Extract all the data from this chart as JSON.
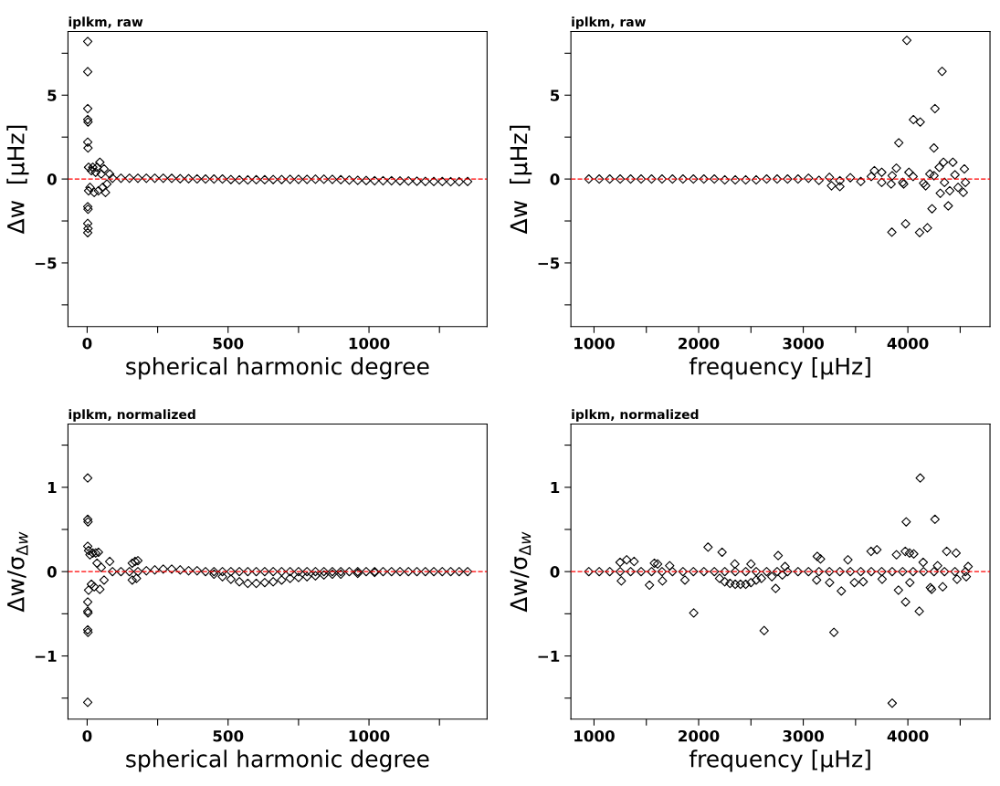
{
  "chart_data": [
    {
      "type": "scatter",
      "title": "iplkm, raw",
      "xlabel": "spherical harmonic degree",
      "ylabel": "Δw  [μHz]",
      "marker": "diamond",
      "grid": false,
      "xlim": [
        -68,
        1419
      ],
      "xticks": [
        0,
        {
          "value": 250,
          "label": null
        },
        500,
        {
          "value": 750,
          "label": null
        },
        1000,
        {
          "value": 1250,
          "label": null
        }
      ],
      "ylim": [
        -8.8,
        8.8
      ],
      "yticks": [
        {
          "value": -7.5,
          "label": null
        },
        {
          "value": -5,
          "label": "−5"
        },
        {
          "value": -2.5,
          "label": null
        },
        0,
        {
          "value": 2.5,
          "label": null
        },
        5,
        {
          "value": 7.5,
          "label": null
        }
      ],
      "ref_lines": [
        {
          "axis": "y",
          "value": 0,
          "color": "#ff0000",
          "line_style": "dashed"
        }
      ],
      "series": [
        {
          "color": "#000000",
          "x": [
            2,
            2,
            2,
            2,
            3,
            2,
            3,
            2,
            3,
            2,
            3,
            2,
            45,
            35,
            60,
            20,
            25,
            40,
            65,
            80,
            10,
            50,
            30,
            70,
            55,
            15,
            5,
            5,
            90,
            120,
            150,
            180,
            210,
            240,
            270,
            300,
            330,
            360,
            390,
            420,
            450,
            480,
            510,
            540,
            570,
            600,
            630,
            660,
            690,
            720,
            750,
            780,
            810,
            840,
            870,
            900,
            930,
            960,
            990,
            1020,
            1050,
            1080,
            1110,
            1140,
            1170,
            1200,
            1230,
            1260,
            1290,
            1320,
            1350
          ],
          "values": [
            8.2,
            6.4,
            4.2,
            3.55,
            3.4,
            2.2,
            1.85,
            -1.65,
            -1.8,
            -2.65,
            -2.95,
            -3.2,
            1.0,
            0.7,
            0.6,
            0.7,
            -0.8,
            -0.7,
            -0.8,
            0.3,
            -0.5,
            0.3,
            0.4,
            -0.3,
            -0.5,
            0.5,
            0.7,
            -0.7,
            0.05,
            0.05,
            0.05,
            0.05,
            0.05,
            0.05,
            0.05,
            0.04,
            0.02,
            0.02,
            0.01,
            0.0,
            0.0,
            0.0,
            -0.03,
            -0.05,
            -0.05,
            -0.04,
            -0.04,
            -0.03,
            -0.03,
            -0.02,
            -0.02,
            -0.02,
            -0.01,
            -0.01,
            -0.02,
            -0.04,
            -0.06,
            -0.08,
            -0.09,
            -0.1,
            -0.1,
            -0.1,
            -0.11,
            -0.12,
            -0.13,
            -0.14,
            -0.15,
            -0.15,
            -0.16,
            -0.16,
            -0.15
          ]
        }
      ]
    },
    {
      "type": "scatter",
      "title": "iplkm, raw",
      "xlabel": "frequency [μHz]",
      "ylabel": "Δw  [μHz]",
      "marker": "diamond",
      "grid": false,
      "xlim": [
        779,
        4785
      ],
      "xticks": [
        1000,
        {
          "value": 1500,
          "label": null
        },
        2000,
        {
          "value": 2500,
          "label": null
        },
        3000,
        {
          "value": 3500,
          "label": null
        },
        4000,
        {
          "value": 4500,
          "label": null
        }
      ],
      "ylim": [
        -8.8,
        8.8
      ],
      "yticks": [
        {
          "value": -7.5,
          "label": null
        },
        {
          "value": -5,
          "label": "−5"
        },
        {
          "value": -2.5,
          "label": null
        },
        0,
        {
          "value": 2.5,
          "label": null
        },
        5,
        {
          "value": 7.5,
          "label": null
        }
      ],
      "ref_lines": [
        {
          "axis": "y",
          "value": 0,
          "color": "#ff0000",
          "line_style": "dashed"
        }
      ],
      "series": [
        {
          "color": "#000000",
          "x": [
            3990,
            4327,
            4259,
            4053,
            4118,
            3913,
            4249,
            4231,
            4386,
            3847,
            3978,
            4112,
            4187,
            3680,
            3750,
            3890,
            4010,
            4340,
            4430,
            4300,
            4540,
            3270,
            3350,
            4310,
            4400,
            4530,
            4480,
            3840,
            3960,
            4170,
            4210,
            950,
            1050,
            1150,
            1250,
            1350,
            1450,
            1550,
            1650,
            1750,
            1850,
            1950,
            2050,
            2150,
            2250,
            2350,
            2450,
            2550,
            2650,
            2750,
            2850,
            2950,
            3050,
            3150,
            3250,
            3350,
            3450,
            3550,
            3650,
            3750,
            3850,
            3950,
            4050,
            4150,
            4250,
            4350,
            4450,
            4550
          ],
          "values": [
            8.27,
            6.42,
            4.2,
            3.54,
            3.4,
            2.16,
            1.85,
            -1.77,
            -1.6,
            -3.17,
            -2.67,
            -3.19,
            -2.91,
            0.5,
            0.4,
            0.65,
            0.4,
            1.0,
            1.0,
            0.7,
            0.6,
            -0.4,
            -0.45,
            -0.85,
            -0.7,
            -0.8,
            -0.5,
            -0.3,
            -0.3,
            -0.4,
            0.3,
            0,
            0,
            0,
            0,
            0,
            0,
            0,
            0,
            0,
            0,
            0,
            0,
            0,
            -0.05,
            -0.05,
            -0.05,
            -0.05,
            0,
            0,
            0,
            0,
            0.05,
            -0.08,
            0.1,
            -0.1,
            0.08,
            -0.15,
            0.15,
            -0.2,
            0.2,
            -0.2,
            0.15,
            -0.25,
            0.2,
            -0.2,
            0.25,
            -0.2
          ]
        }
      ]
    },
    {
      "type": "scatter",
      "title": "iplkm, normalized",
      "xlabel": "spherical harmonic degree",
      "ylabel": "Δw/σ$_{Δw}$",
      "marker": "diamond",
      "grid": false,
      "xlim": [
        -68,
        1419
      ],
      "xticks": [
        0,
        {
          "value": 250,
          "label": null
        },
        500,
        {
          "value": 750,
          "label": null
        },
        1000,
        {
          "value": 1250,
          "label": null
        }
      ],
      "ylim": [
        -1.75,
        1.75
      ],
      "yticks": [
        {
          "value": -1.5,
          "label": null
        },
        {
          "value": -1,
          "label": "−1"
        },
        {
          "value": -0.5,
          "label": null
        },
        0,
        {
          "value": 0.5,
          "label": null
        },
        1,
        {
          "value": 1.5,
          "label": null
        }
      ],
      "ref_lines": [
        {
          "axis": "y",
          "value": 0,
          "color": "#ff0000",
          "line_style": "dashed"
        }
      ],
      "series": [
        {
          "color": "#000000",
          "x": [
            2,
            2,
            3,
            2,
            2,
            2,
            3,
            2,
            3,
            2,
            5,
            10,
            20,
            30,
            40,
            25,
            45,
            80,
            15,
            35,
            60,
            50,
            160,
            170,
            180,
            160,
            175,
            5,
            90,
            120,
            150,
            180,
            210,
            240,
            270,
            300,
            330,
            360,
            390,
            420,
            450,
            480,
            510,
            540,
            570,
            600,
            630,
            660,
            690,
            720,
            750,
            780,
            810,
            840,
            870,
            900,
            930,
            960,
            990,
            1020,
            1050,
            1080,
            1110,
            1140,
            1170,
            1200,
            1230,
            1260,
            1290,
            1320,
            1350,
            450,
            480,
            510,
            540,
            570,
            600,
            630,
            660,
            690,
            720,
            750,
            780,
            810,
            840,
            870,
            900,
            960,
            1020
          ],
          "values": [
            1.11,
            0.62,
            0.59,
            0.3,
            -0.36,
            -0.47,
            -0.49,
            -0.69,
            -0.72,
            -1.55,
            0.25,
            0.2,
            0.22,
            0.22,
            0.23,
            -0.18,
            -0.21,
            0.12,
            -0.15,
            0.1,
            -0.1,
            0.05,
            0.1,
            0.12,
            0.13,
            -0.1,
            -0.08,
            -0.22,
            0,
            0,
            0,
            0,
            0.01,
            0.02,
            0.03,
            0.03,
            0.02,
            0.01,
            0.01,
            0,
            0,
            0,
            0,
            0,
            0,
            0,
            0,
            0,
            0,
            0,
            0,
            0,
            0,
            0,
            0,
            0,
            0,
            0,
            0,
            0,
            0,
            0,
            0,
            0,
            0,
            0,
            0,
            0,
            0,
            0,
            0,
            -0.03,
            -0.06,
            -0.09,
            -0.12,
            -0.14,
            -0.14,
            -0.13,
            -0.12,
            -0.1,
            -0.08,
            -0.07,
            -0.06,
            -0.05,
            -0.04,
            -0.03,
            -0.03,
            -0.02,
            -0.01
          ]
        }
      ]
    },
    {
      "type": "scatter",
      "title": "iplkm, normalized",
      "xlabel": "frequency [μHz]",
      "ylabel": "Δw/σ$_{Δw}$",
      "marker": "diamond",
      "grid": false,
      "xlim": [
        779,
        4785
      ],
      "xticks": [
        1000,
        {
          "value": 1500,
          "label": null
        },
        2000,
        {
          "value": 2500,
          "label": null
        },
        3000,
        {
          "value": 3500,
          "label": null
        },
        4000,
        {
          "value": 4500,
          "label": null
        }
      ],
      "ylim": [
        -1.75,
        1.75
      ],
      "yticks": [
        {
          "value": -1.5,
          "label": null
        },
        {
          "value": -1,
          "label": "−1"
        },
        {
          "value": -0.5,
          "label": null
        },
        0,
        {
          "value": 0.5,
          "label": null
        },
        1,
        {
          "value": 1.5,
          "label": null
        }
      ],
      "ref_lines": [
        {
          "axis": "y",
          "value": 0,
          "color": "#ff0000",
          "line_style": "dashed"
        }
      ],
      "series": [
        {
          "color": "#000000",
          "x": [
            4118,
            3984,
            4259,
            3850,
            3293,
            2626,
            1953,
            4109,
            3978,
            3910,
            3364,
            2090,
            2224,
            2760,
            3134,
            3165,
            3648,
            3704,
            3891,
            3975,
            4016,
            4056,
            4371,
            4461,
            4215,
            4333,
            4227,
            2736,
            1530,
            1654,
            1249,
            1312,
            1383,
            1261,
            1577,
            1608,
            1723,
            1869,
            2346,
            2500,
            2826,
            3427,
            3128,
            3252,
            3489,
            3573,
            3754,
            4019,
            4470,
            4558,
            4576,
            4284,
            4146,
            950,
            1050,
            1150,
            1250,
            1350,
            1450,
            1550,
            1650,
            1750,
            1850,
            1950,
            2050,
            2150,
            2250,
            2350,
            2450,
            2550,
            2650,
            2750,
            2850,
            2950,
            3050,
            3150,
            3250,
            3350,
            3450,
            3550,
            3650,
            3750,
            3850,
            3950,
            4050,
            4150,
            4250,
            4350,
            4450,
            4550,
            2200,
            2250,
            2300,
            2350,
            2400,
            2450,
            2500,
            2550,
            2600,
            2700,
            2800
          ],
          "values": [
            1.11,
            0.59,
            0.62,
            -1.56,
            -0.72,
            -0.7,
            -0.49,
            -0.47,
            -0.36,
            -0.22,
            -0.23,
            0.29,
            0.23,
            0.19,
            0.18,
            0.15,
            0.24,
            0.26,
            0.2,
            0.24,
            0.22,
            0.21,
            0.24,
            0.22,
            -0.19,
            -0.18,
            -0.21,
            -0.2,
            -0.16,
            -0.11,
            0.11,
            0.14,
            0.12,
            -0.11,
            0.1,
            0.09,
            0.07,
            -0.1,
            0.09,
            0.09,
            0.06,
            0.14,
            -0.1,
            -0.13,
            -0.13,
            -0.12,
            -0.09,
            -0.13,
            -0.09,
            -0.06,
            0.06,
            0.07,
            0.11,
            0,
            0,
            0,
            0,
            0,
            0,
            0,
            0,
            0,
            0,
            0,
            0,
            0,
            0,
            0,
            0,
            0,
            0,
            0,
            0,
            0,
            0,
            0,
            0,
            0,
            0,
            0,
            0,
            0,
            0,
            0,
            0,
            0,
            0,
            0,
            0,
            0,
            -0.08,
            -0.12,
            -0.14,
            -0.15,
            -0.15,
            -0.15,
            -0.13,
            -0.1,
            -0.08,
            -0.06,
            -0.04
          ]
        }
      ]
    }
  ]
}
